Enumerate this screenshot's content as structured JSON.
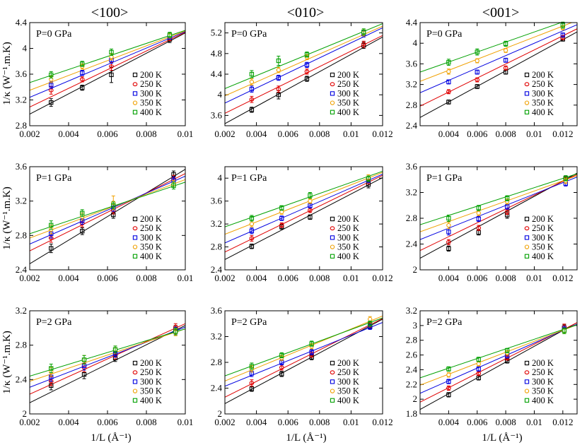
{
  "figure": {
    "column_titles": [
      "<100>",
      "<010>",
      "<001>"
    ],
    "ylabel": "1/κ (W⁻¹.m.K)",
    "xlabel": "1/L (Å⁻¹)",
    "legend": [
      "200 K",
      "250 K",
      "300 K",
      "350 K",
      "400 K"
    ],
    "series_colors": [
      "#000000",
      "#e00000",
      "#0000e0",
      "#f0a000",
      "#00a000"
    ]
  },
  "chart_data": [
    {
      "type": "scatter",
      "title": "P=0 GPa",
      "direction": "<100>",
      "xlim": [
        0.002,
        0.01
      ],
      "ylim": [
        2.8,
        4.4
      ],
      "xticks": [
        "0.002",
        "0.004",
        "0.006",
        "0.008",
        "0.01"
      ],
      "yticks": [
        "2.8",
        "3.2",
        "3.6",
        "4",
        "4.4"
      ],
      "x": [
        0.0031,
        0.0047,
        0.0062,
        0.0092
      ],
      "series": [
        {
          "name": "200 K",
          "values": [
            3.16,
            3.39,
            3.59,
            4.14
          ],
          "errors": [
            0.06,
            0.04,
            0.12,
            0.05
          ],
          "fit": [
            2.98,
            4.24
          ]
        },
        {
          "name": "250 K",
          "values": [
            3.35,
            3.52,
            3.72,
            4.16
          ],
          "errors": [
            0.06,
            0.04,
            0.06,
            0.04
          ],
          "fit": [
            3.09,
            4.25
          ]
        },
        {
          "name": "300 K",
          "values": [
            3.43,
            3.62,
            3.82,
            4.18
          ],
          "errors": [
            0.05,
            0.04,
            0.05,
            0.04
          ],
          "fit": [
            3.24,
            4.26
          ]
        },
        {
          "name": "350 K",
          "values": [
            3.52,
            3.72,
            3.87,
            4.2
          ],
          "errors": [
            0.05,
            0.04,
            0.05,
            0.04
          ],
          "fit": [
            3.35,
            4.27
          ]
        },
        {
          "name": "400 K",
          "values": [
            3.59,
            3.76,
            3.94,
            4.21
          ],
          "errors": [
            0.05,
            0.04,
            0.05,
            0.04
          ],
          "fit": [
            3.47,
            4.28
          ]
        }
      ]
    },
    {
      "type": "scatter",
      "title": "P=0 GPa",
      "direction": "<010>",
      "xlim": [
        0.002,
        0.012
      ],
      "ylim": [
        3.4,
        5.4
      ],
      "xticks": [
        "0.002",
        "0.004",
        "0.006",
        "0.008",
        "0.01",
        "0.012"
      ],
      "yticks": [
        "3.6",
        "4",
        "4.4",
        "4.8",
        "5.2"
      ],
      "x": [
        0.0037,
        0.0054,
        0.0072,
        0.0108
      ],
      "series": [
        {
          "name": "200 K",
          "values": [
            3.71,
            4.0,
            4.31,
            4.96
          ],
          "errors": [
            0.05,
            0.08,
            0.05,
            0.06
          ],
          "fit": [
            3.44,
            5.12
          ]
        },
        {
          "name": "250 K",
          "values": [
            3.91,
            4.11,
            4.45,
            4.98
          ],
          "errors": [
            0.06,
            0.06,
            0.05,
            0.06
          ],
          "fit": [
            3.64,
            5.15
          ]
        },
        {
          "name": "300 K",
          "values": [
            4.11,
            4.33,
            4.58,
            5.18
          ],
          "errors": [
            0.06,
            0.05,
            0.05,
            0.06
          ],
          "fit": [
            3.84,
            5.3
          ]
        },
        {
          "name": "350 K",
          "values": [
            4.25,
            4.48,
            4.73,
            5.2
          ],
          "errors": [
            0.06,
            0.05,
            0.05,
            0.06
          ],
          "fit": [
            3.98,
            5.33
          ]
        },
        {
          "name": "400 K",
          "values": [
            4.4,
            4.66,
            4.78,
            5.22
          ],
          "errors": [
            0.07,
            0.09,
            0.05,
            0.06
          ],
          "fit": [
            4.12,
            5.38
          ]
        }
      ]
    },
    {
      "type": "scatter",
      "title": "P=0 GPa",
      "direction": "<001>",
      "xlim": [
        0.002,
        0.013
      ],
      "ylim": [
        2.4,
        4.4
      ],
      "xticks": [
        "0.004",
        "0.006",
        "0.008",
        "0.01",
        "0.012"
      ],
      "yticks": [
        "2.4",
        "2.8",
        "3.2",
        "3.6",
        "4",
        "4.4"
      ],
      "x": [
        0.004,
        0.006,
        0.008,
        0.012
      ],
      "series": [
        {
          "name": "200 K",
          "values": [
            2.86,
            3.16,
            3.44,
            4.08
          ],
          "errors": [
            0.04,
            0.04,
            0.04,
            0.04
          ],
          "fit": [
            2.56,
            4.22
          ]
        },
        {
          "name": "250 K",
          "values": [
            3.06,
            3.29,
            3.52,
            4.11
          ],
          "errors": [
            0.04,
            0.04,
            0.04,
            0.04
          ],
          "fit": [
            2.78,
            4.28
          ]
        },
        {
          "name": "300 K",
          "values": [
            3.25,
            3.44,
            3.67,
            4.16
          ],
          "errors": [
            0.04,
            0.04,
            0.04,
            0.04
          ],
          "fit": [
            3.04,
            4.36
          ]
        },
        {
          "name": "350 K",
          "values": [
            3.45,
            3.66,
            3.86,
            4.3
          ],
          "errors": [
            0.05,
            0.04,
            0.04,
            0.04
          ],
          "fit": [
            3.26,
            4.44
          ]
        },
        {
          "name": "400 K",
          "values": [
            3.63,
            3.83,
            3.99,
            4.35
          ],
          "errors": [
            0.06,
            0.06,
            0.05,
            0.06
          ],
          "fit": [
            3.44,
            4.51
          ]
        }
      ]
    },
    {
      "type": "scatter",
      "title": "P=1 GPa",
      "direction": "<100>",
      "xlim": [
        0.002,
        0.01
      ],
      "ylim": [
        2.4,
        3.6
      ],
      "xticks": [
        "0.002",
        "0.004",
        "0.006",
        "0.008",
        "0.01"
      ],
      "yticks": [
        "2.4",
        "2.8",
        "3.2",
        "3.6"
      ],
      "x": [
        0.0031,
        0.0047,
        0.0063,
        0.0094
      ],
      "series": [
        {
          "name": "200 K",
          "values": [
            2.65,
            2.85,
            3.04,
            3.51
          ],
          "errors": [
            0.05,
            0.04,
            0.04,
            0.04
          ],
          "fit": [
            2.47,
            3.57
          ]
        },
        {
          "name": "250 K",
          "values": [
            2.77,
            2.94,
            3.09,
            3.46
          ],
          "errors": [
            0.05,
            0.04,
            0.04,
            0.04
          ],
          "fit": [
            2.62,
            3.52
          ]
        },
        {
          "name": "300 K",
          "values": [
            2.82,
            2.97,
            3.12,
            3.44
          ],
          "errors": [
            0.05,
            0.04,
            0.04,
            0.04
          ],
          "fit": [
            2.7,
            3.49
          ]
        },
        {
          "name": "350 K",
          "values": [
            2.87,
            3.02,
            3.18,
            3.4
          ],
          "errors": [
            0.05,
            0.04,
            0.08,
            0.04
          ],
          "fit": [
            2.77,
            3.45
          ]
        },
        {
          "name": "400 K",
          "values": [
            2.92,
            3.06,
            3.15,
            3.38
          ],
          "errors": [
            0.05,
            0.04,
            0.04,
            0.04
          ],
          "fit": [
            2.82,
            3.42
          ]
        }
      ]
    },
    {
      "type": "scatter",
      "title": "P=1 GPa",
      "direction": "<010>",
      "xlim": [
        0.002,
        0.012
      ],
      "ylim": [
        2.4,
        4.2
      ],
      "xticks": [
        "0.002",
        "0.004",
        "0.006",
        "0.008",
        "0.01",
        "0.012"
      ],
      "yticks": [
        "2.4",
        "2.8",
        "3.2",
        "3.6",
        "4"
      ],
      "x": [
        0.0037,
        0.0056,
        0.0074,
        0.0111
      ],
      "series": [
        {
          "name": "200 K",
          "values": [
            2.81,
            3.15,
            3.32,
            3.89
          ],
          "errors": [
            0.04,
            0.04,
            0.04,
            0.06
          ],
          "fit": [
            2.58,
            4.01
          ]
        },
        {
          "name": "250 K",
          "values": [
            2.95,
            3.18,
            3.44,
            3.95
          ],
          "errors": [
            0.05,
            0.04,
            0.04,
            0.05
          ],
          "fit": [
            2.71,
            4.05
          ]
        },
        {
          "name": "300 K",
          "values": [
            3.08,
            3.3,
            3.52,
            3.97
          ],
          "errors": [
            0.05,
            0.04,
            0.04,
            0.05
          ],
          "fit": [
            2.87,
            4.07
          ]
        },
        {
          "name": "350 K",
          "values": [
            3.2,
            3.41,
            3.6,
            4.01
          ],
          "errors": [
            0.05,
            0.04,
            0.04,
            0.05
          ],
          "fit": [
            3.02,
            4.1
          ]
        },
        {
          "name": "400 K",
          "values": [
            3.3,
            3.48,
            3.7,
            3.99
          ],
          "errors": [
            0.05,
            0.04,
            0.05,
            0.05
          ],
          "fit": [
            3.15,
            4.12
          ]
        }
      ]
    },
    {
      "type": "scatter",
      "title": "P=1 GPa",
      "direction": "<001>",
      "xlim": [
        0.002,
        0.013
      ],
      "ylim": [
        2.0,
        3.6
      ],
      "xticks": [
        "0.004",
        "0.006",
        "0.008",
        "0.01",
        "0.012"
      ],
      "yticks": [
        "2",
        "2.4",
        "2.8",
        "3.2",
        "3.6"
      ],
      "x": [
        0.004,
        0.0061,
        0.0081,
        0.0122
      ],
      "series": [
        {
          "name": "200 K",
          "values": [
            2.33,
            2.58,
            2.85,
            3.42
          ],
          "errors": [
            0.04,
            0.04,
            0.05,
            0.04
          ],
          "fit": [
            2.18,
            3.5
          ]
        },
        {
          "name": "250 K",
          "values": [
            2.43,
            2.65,
            2.9,
            3.4
          ],
          "errors": [
            0.04,
            0.04,
            0.04,
            0.04
          ],
          "fit": [
            2.3,
            3.48
          ]
        },
        {
          "name": "300 K",
          "values": [
            2.59,
            2.79,
            2.98,
            3.34
          ],
          "errors": [
            0.05,
            0.04,
            0.04,
            0.04
          ],
          "fit": [
            2.47,
            3.44
          ]
        },
        {
          "name": "350 K",
          "values": [
            2.69,
            2.88,
            3.06,
            3.38
          ],
          "errors": [
            0.05,
            0.04,
            0.04,
            0.04
          ],
          "fit": [
            2.59,
            3.46
          ]
        },
        {
          "name": "400 K",
          "values": [
            2.8,
            2.96,
            3.11,
            3.42
          ],
          "errors": [
            0.05,
            0.04,
            0.04,
            0.04
          ],
          "fit": [
            2.7,
            3.49
          ]
        }
      ]
    },
    {
      "type": "scatter",
      "title": "P=2 GPa",
      "direction": "<100>",
      "xlim": [
        0.002,
        0.01
      ],
      "ylim": [
        2.0,
        3.2
      ],
      "xticks": [
        "0.002",
        "0.004",
        "0.006",
        "0.008",
        "0.01"
      ],
      "yticks": [
        "2",
        "2.4",
        "2.8",
        "3.2"
      ],
      "x": [
        0.0031,
        0.0048,
        0.0064,
        0.0095
      ],
      "series": [
        {
          "name": "200 K",
          "values": [
            2.33,
            2.46,
            2.65,
            2.99
          ],
          "errors": [
            0.05,
            0.05,
            0.04,
            0.04
          ],
          "fit": [
            2.13,
            3.03
          ]
        },
        {
          "name": "250 K",
          "values": [
            2.38,
            2.54,
            2.68,
            3.01
          ],
          "errors": [
            0.05,
            0.05,
            0.04,
            0.04
          ],
          "fit": [
            2.23,
            3.05
          ]
        },
        {
          "name": "300 K",
          "values": [
            2.43,
            2.56,
            2.7,
            2.97
          ],
          "errors": [
            0.05,
            0.05,
            0.04,
            0.04
          ],
          "fit": [
            2.31,
            3.01
          ]
        },
        {
          "name": "350 K",
          "values": [
            2.49,
            2.63,
            2.75,
            2.95
          ],
          "errors": [
            0.05,
            0.05,
            0.04,
            0.04
          ],
          "fit": [
            2.38,
            2.99
          ]
        },
        {
          "name": "400 K",
          "values": [
            2.53,
            2.63,
            2.75,
            2.96
          ],
          "errors": [
            0.05,
            0.05,
            0.04,
            0.04
          ],
          "fit": [
            2.44,
            2.99
          ]
        }
      ]
    },
    {
      "type": "scatter",
      "title": "P=2 GPa",
      "direction": "<010>",
      "xlim": [
        0.002,
        0.012
      ],
      "ylim": [
        2.0,
        3.6
      ],
      "xticks": [
        "0.002",
        "0.004",
        "0.006",
        "0.008",
        "0.01",
        "0.012"
      ],
      "yticks": [
        "2",
        "2.4",
        "2.8",
        "3.2",
        "3.6"
      ],
      "x": [
        0.0037,
        0.0056,
        0.0075,
        0.0112
      ],
      "series": [
        {
          "name": "200 K",
          "values": [
            2.39,
            2.62,
            2.88,
            3.36
          ],
          "errors": [
            0.04,
            0.04,
            0.04,
            0.04
          ],
          "fit": [
            2.16,
            3.47
          ]
        },
        {
          "name": "250 K",
          "values": [
            2.48,
            2.72,
            2.92,
            3.38
          ],
          "errors": [
            0.05,
            0.04,
            0.04,
            0.04
          ],
          "fit": [
            2.26,
            3.48
          ]
        },
        {
          "name": "300 K",
          "values": [
            2.63,
            2.8,
            2.96,
            3.35
          ],
          "errors": [
            0.05,
            0.04,
            0.04,
            0.04
          ],
          "fit": [
            2.43,
            3.42
          ]
        },
        {
          "name": "350 K",
          "values": [
            2.7,
            2.87,
            3.05,
            3.47
          ],
          "errors": [
            0.05,
            0.04,
            0.04,
            0.04
          ],
          "fit": [
            2.51,
            3.52
          ]
        },
        {
          "name": "400 K",
          "values": [
            2.74,
            2.91,
            3.09,
            3.4
          ],
          "errors": [
            0.05,
            0.04,
            0.04,
            0.04
          ],
          "fit": [
            2.59,
            3.49
          ]
        }
      ]
    },
    {
      "type": "scatter",
      "title": "P=2 GPa",
      "direction": "<001>",
      "xlim": [
        0.002,
        0.013
      ],
      "ylim": [
        1.8,
        3.2
      ],
      "xticks": [
        "0.004",
        "0.006",
        "0.008",
        "0.01",
        "0.012"
      ],
      "yticks": [
        "1.8",
        "2",
        "2.2",
        "2.4",
        "2.6",
        "2.8",
        "3",
        "3.2"
      ],
      "x": [
        0.004,
        0.0061,
        0.0081,
        0.0121
      ],
      "series": [
        {
          "name": "200 K",
          "values": [
            2.06,
            2.29,
            2.52,
            2.97
          ],
          "errors": [
            0.03,
            0.03,
            0.03,
            0.04
          ],
          "fit": [
            1.86,
            3.04
          ]
        },
        {
          "name": "250 K",
          "values": [
            2.15,
            2.35,
            2.56,
            2.98
          ],
          "errors": [
            0.03,
            0.03,
            0.03,
            0.04
          ],
          "fit": [
            1.96,
            3.04
          ]
        },
        {
          "name": "300 K",
          "values": [
            2.24,
            2.41,
            2.59,
            2.95
          ],
          "errors": [
            0.03,
            0.03,
            0.03,
            0.04
          ],
          "fit": [
            2.08,
            3.02
          ]
        },
        {
          "name": "350 K",
          "values": [
            2.33,
            2.48,
            2.63,
            2.93
          ],
          "errors": [
            0.03,
            0.03,
            0.03,
            0.04
          ],
          "fit": [
            2.19,
            3.01
          ]
        },
        {
          "name": "400 K",
          "values": [
            2.41,
            2.54,
            2.66,
            2.93
          ],
          "errors": [
            0.03,
            0.03,
            0.03,
            0.04
          ],
          "fit": [
            2.29,
            3.01
          ]
        }
      ]
    }
  ]
}
